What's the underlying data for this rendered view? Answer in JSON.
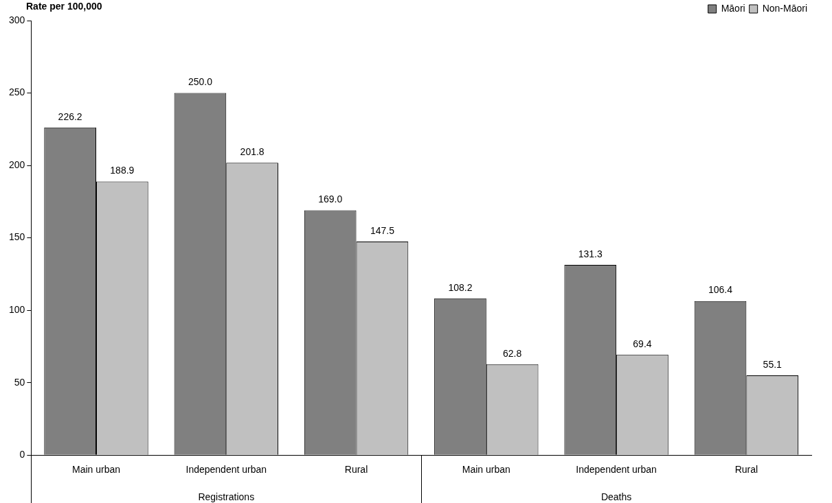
{
  "chart_data": {
    "type": "bar",
    "ylabel": "Rate per 100,000",
    "categories": [
      "Main urban",
      "Independent urban",
      "Rural",
      "Main urban",
      "Independent urban",
      "Rural"
    ],
    "annotations": [
      "Registrations",
      "Deaths"
    ],
    "series": [
      {
        "name": "Māori",
        "color": "#808080",
        "values": [
          226.2,
          250.0,
          169.0,
          108.2,
          131.3,
          106.4
        ],
        "value_labels": [
          "226.2",
          "250.0",
          "169.0",
          "108.2",
          "131.3",
          "106.4"
        ]
      },
      {
        "name": "Non-Māori",
        "color": "#c0c0c0",
        "values": [
          188.9,
          201.8,
          147.5,
          62.8,
          69.4,
          55.1
        ],
        "value_labels": [
          "188.9",
          "201.8",
          "147.5",
          "62.8",
          "69.4",
          "55.1"
        ]
      }
    ],
    "ylim": [
      0,
      300
    ],
    "yticks": [
      0,
      50,
      100,
      150,
      200,
      250,
      300
    ],
    "grid": false,
    "legend": "top right"
  }
}
